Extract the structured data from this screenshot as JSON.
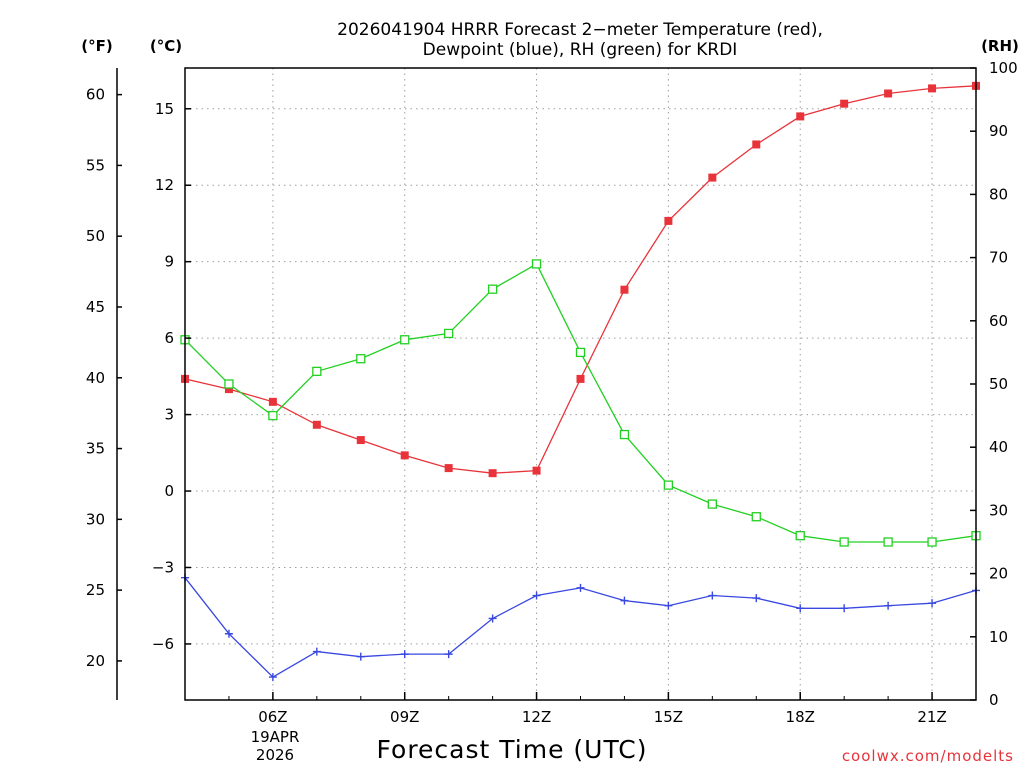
{
  "chart_data": {
    "type": "line",
    "title": "2026041904 HRRR Forecast 2−meter Temperature (red),",
    "subtitle": "Dewpoint (blue), RH (green) for KRDI",
    "xlabel": "Forecast Time (UTC)",
    "credit": "coolwx.com/modelts",
    "units": {
      "fahrenheit": "(°F)",
      "celsius": "(°C)",
      "rh": "(RH)"
    },
    "date_label": {
      "day": "19APR",
      "year": "2026"
    },
    "x_hours": [
      4,
      5,
      6,
      7,
      8,
      9,
      10,
      11,
      12,
      13,
      14,
      15,
      16,
      17,
      18,
      19,
      20,
      21,
      22
    ],
    "xlim": [
      4,
      22
    ],
    "x_ticks": [
      {
        "hour": 6,
        "label": "06Z"
      },
      {
        "hour": 9,
        "label": "09Z"
      },
      {
        "hour": 12,
        "label": "12Z"
      },
      {
        "hour": 15,
        "label": "15Z"
      },
      {
        "hour": 18,
        "label": "18Z"
      },
      {
        "hour": 21,
        "label": "21Z"
      }
    ],
    "ylim_c": [
      -8.2,
      16.6
    ],
    "yticks_c": [
      15,
      12,
      9,
      6,
      3,
      0,
      -3,
      -6
    ],
    "ytick_labels_c": [
      "15",
      "12",
      "9",
      "6",
      "3",
      "0",
      "−3",
      "−6"
    ],
    "yticks_f": [
      60,
      55,
      50,
      45,
      40,
      35,
      30,
      25,
      20
    ],
    "ylim_rh": [
      0,
      100
    ],
    "yticks_rh": [
      100,
      90,
      80,
      70,
      60,
      50,
      40,
      30,
      20,
      10,
      0
    ],
    "series": [
      {
        "name": "Temperature",
        "color": "#e8333a",
        "axis": "c",
        "marker": "filled-square",
        "values": [
          4.4,
          4.0,
          3.5,
          2.6,
          2.0,
          1.4,
          0.9,
          0.7,
          0.8,
          4.4,
          7.9,
          10.6,
          12.3,
          13.6,
          14.7,
          15.2,
          15.6,
          15.8,
          15.9
        ]
      },
      {
        "name": "Dewpoint",
        "color": "#3848e0",
        "axis": "c",
        "marker": "plus",
        "values": [
          -3.4,
          -5.6,
          -7.3,
          -6.3,
          -6.5,
          -6.4,
          -6.4,
          -5.0,
          -4.1,
          -3.8,
          -4.3,
          -4.5,
          -4.1,
          -4.2,
          -4.6,
          -4.6,
          -4.5,
          -4.4,
          -3.9
        ]
      },
      {
        "name": "RH",
        "color": "#22d022",
        "axis": "rh",
        "marker": "open-square",
        "values": [
          57,
          50,
          45,
          52,
          54,
          57,
          58,
          65,
          69,
          55,
          42,
          34,
          31,
          29,
          26,
          25,
          25,
          25,
          26
        ]
      }
    ]
  }
}
